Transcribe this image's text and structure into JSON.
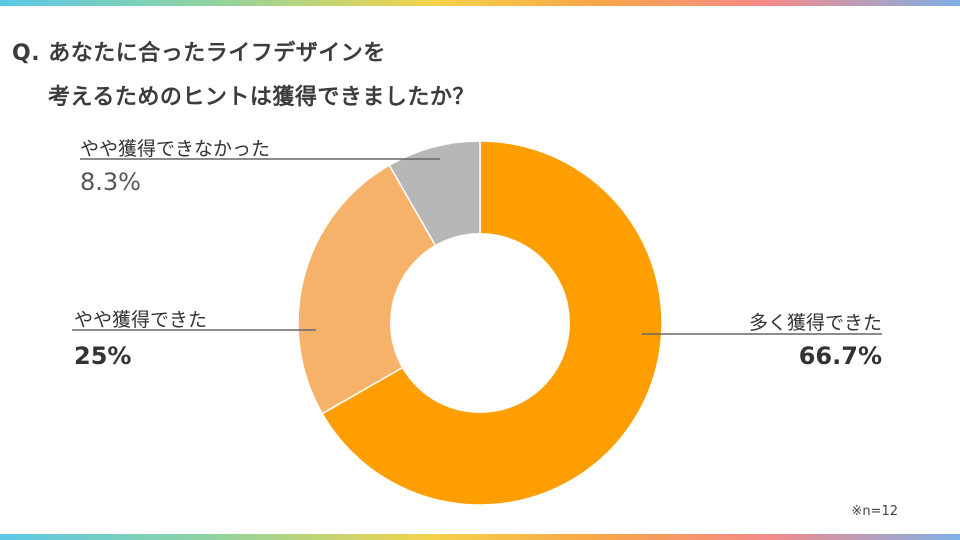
{
  "question": {
    "line1": "Q. あなたに合ったライフデザインを",
    "line2": "考えるためのヒントは獲得できましたか？"
  },
  "chart_data": {
    "type": "pie",
    "donut": true,
    "categories": [
      "多く獲得できた",
      "やや獲得できた",
      "やや獲得できなかった"
    ],
    "values": [
      66.7,
      25,
      8.3
    ],
    "value_labels": [
      "66.7%",
      "25%",
      "8.3%"
    ],
    "colors": [
      "#ff9e00",
      "#f7b26a",
      "#b7b7b7"
    ]
  },
  "note": "※n=12"
}
